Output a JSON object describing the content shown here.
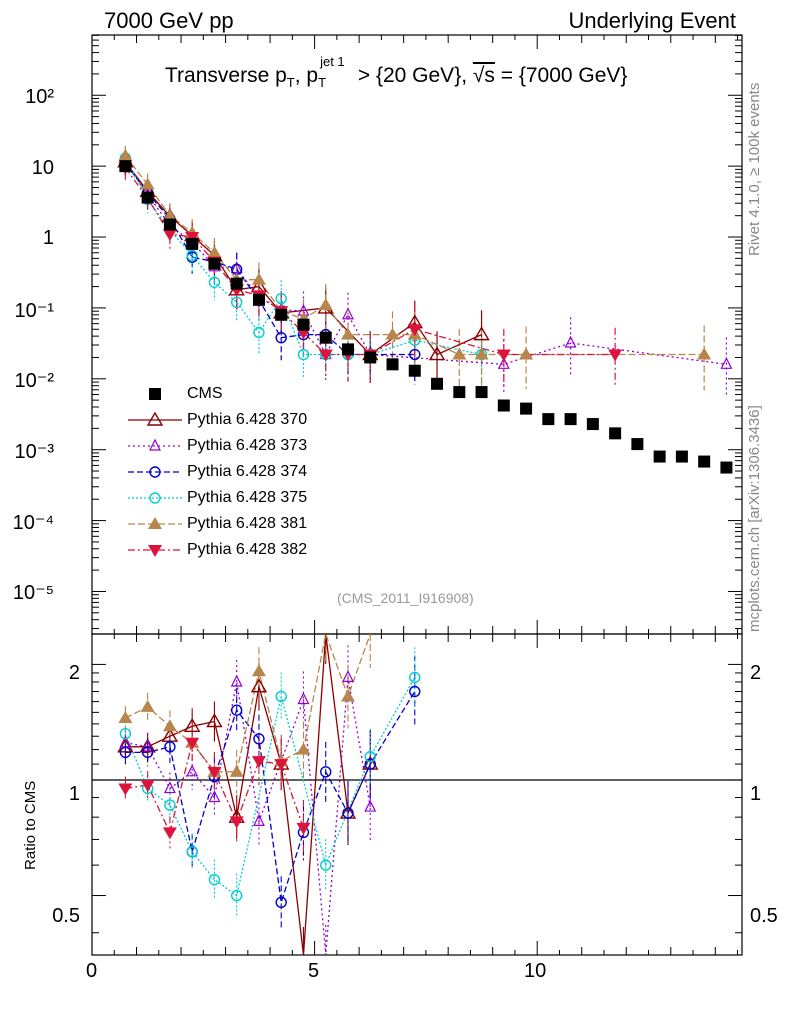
{
  "header": {
    "left": "7000 GeV pp",
    "right": "Underlying Event",
    "rivet": "Rivet 4.1.0, ≥ 100k events",
    "mcplots": "mcplots.cern.ch [arXiv:1306.3436]",
    "watermark": "(CMS_2011_I916908)"
  },
  "title": {
    "part1": "Transverse p",
    "sub1": "T",
    "part2": ", p",
    "sub2": "T",
    "sup2": "jet 1",
    "part3": " > {20 GeV}, ",
    "sqrt": "√s",
    "part4": " = {7000 GeV}"
  },
  "axes": {
    "ratio_ylabel": "Ratio to CMS",
    "x_ticks": [
      "0",
      "5",
      "10"
    ],
    "upper_y_ticks": [
      "10⁻⁵",
      "10⁻⁴",
      "10⁻³",
      "10⁻²",
      "10⁻¹",
      "1",
      "10",
      "10²"
    ],
    "ratio_y_ticks": [
      "0.5",
      "1",
      "2"
    ]
  },
  "chart_data": {
    "type": "scatter",
    "x_range": [
      0,
      14.6
    ],
    "upper_y_range_log10": [
      -5.6,
      2.85
    ],
    "ratio_y_range": [
      0.35,
      2.4
    ],
    "x": [
      0.75,
      1.25,
      1.75,
      2.25,
      2.75,
      3.25,
      3.75,
      4.25,
      4.75,
      5.25,
      5.75,
      6.25,
      6.75,
      7.25,
      7.75,
      8.25,
      8.75,
      9.25,
      9.75,
      10.25,
      10.75,
      11.25,
      11.75,
      12.25,
      12.75,
      13.25,
      13.75,
      14.25
    ],
    "cms": [
      10.0,
      3.6,
      1.5,
      0.8,
      0.42,
      0.22,
      0.13,
      0.08,
      0.058,
      0.038,
      0.026,
      0.02,
      0.016,
      0.013,
      0.0085,
      0.0065,
      0.0065,
      0.0042,
      0.0038,
      0.0027,
      0.0027,
      0.0023,
      0.0017,
      0.0012,
      0.0008,
      0.0008,
      0.00068,
      0.00056
    ],
    "series": [
      {
        "name": "Pythia 6.428 370",
        "color": "#8b0000",
        "dash": "",
        "marker": "triangle-open",
        "x": [
          0.75,
          1.25,
          1.75,
          2.25,
          2.75,
          3.25,
          3.75,
          4.25,
          5.25,
          6.25,
          7.25,
          7.75,
          8.75
        ],
        "values": [
          11.5,
          4.4,
          1.95,
          1.05,
          0.55,
          0.18,
          0.2,
          0.085,
          0.1,
          0.022,
          0.062,
          0.022,
          0.042
        ],
        "ratio_x": [
          0.75,
          1.25,
          1.75,
          2.25,
          2.75,
          3.25,
          3.75,
          4.25,
          4.75,
          5.25,
          5.75,
          6.25
        ],
        "ratio": [
          1.22,
          1.22,
          1.3,
          1.38,
          1.42,
          0.8,
          1.75,
          1.1,
          0.35,
          2.4,
          0.82,
          1.1
        ]
      },
      {
        "name": "Pythia 6.428 373",
        "color": "#9400d3",
        "dash": "2,3",
        "marker": "triangle-open-small",
        "x": [
          0.75,
          1.25,
          1.75,
          2.25,
          2.75,
          3.25,
          3.75,
          4.25,
          4.75,
          5.25,
          5.75,
          6.25,
          9.25,
          10.75,
          14.25
        ],
        "values": [
          11.0,
          4.0,
          1.45,
          0.85,
          0.38,
          0.36,
          0.14,
          0.095,
          0.09,
          0.022,
          0.08,
          0.022,
          0.016,
          0.032,
          0.016
        ],
        "ratio_x": [
          0.75,
          1.25,
          1.75,
          2.25,
          2.75,
          3.25,
          3.75,
          4.25,
          4.75,
          5.25,
          5.75,
          6.25
        ],
        "ratio": [
          1.25,
          1.22,
          0.95,
          1.05,
          0.9,
          1.8,
          0.78,
          1.12,
          1.62,
          0.35,
          1.85,
          0.85
        ]
      },
      {
        "name": "Pythia 6.428 374",
        "color": "#0000cd",
        "dash": "6,3",
        "marker": "circle-open",
        "x": [
          0.75,
          1.25,
          1.75,
          2.25,
          2.75,
          3.25,
          3.75,
          4.25,
          4.75,
          5.25,
          5.75,
          6.25,
          7.25
        ],
        "values": [
          11.0,
          4.2,
          1.8,
          0.52,
          0.45,
          0.35,
          0.13,
          0.038,
          0.042,
          0.042,
          0.022,
          0.022,
          0.022
        ],
        "ratio_x": [
          0.75,
          1.25,
          1.75,
          2.25,
          2.75,
          3.25,
          3.75,
          4.25,
          4.75,
          5.25,
          5.75,
          6.25,
          7.25
        ],
        "ratio": [
          1.18,
          1.18,
          1.22,
          0.65,
          1.02,
          1.52,
          1.28,
          0.48,
          0.73,
          1.05,
          0.82,
          1.1,
          1.7
        ]
      },
      {
        "name": "Pythia 6.428 375",
        "color": "#00ced1",
        "dash": "2,2",
        "marker": "circle-open",
        "x": [
          0.75,
          1.25,
          1.75,
          2.25,
          2.75,
          3.25,
          3.75,
          4.25,
          4.75,
          5.25,
          5.75,
          6.25,
          7.25,
          8.75
        ],
        "values": [
          13.0,
          3.4,
          1.25,
          0.55,
          0.23,
          0.12,
          0.045,
          0.135,
          0.022,
          0.022,
          0.022,
          0.022,
          0.035,
          0.022
        ],
        "ratio_x": [
          0.75,
          1.25,
          1.75,
          2.25,
          2.75,
          3.25,
          4.25,
          5.25,
          6.25,
          7.25
        ],
        "ratio": [
          1.32,
          0.95,
          0.86,
          0.65,
          0.55,
          0.5,
          1.65,
          0.6,
          1.15,
          1.85
        ]
      },
      {
        "name": "Pythia 6.428 381",
        "color": "#b8864b",
        "dash": "7,3",
        "marker": "triangle-filled",
        "x": [
          0.75,
          1.25,
          1.75,
          2.25,
          2.75,
          3.25,
          3.75,
          4.25,
          4.75,
          5.25,
          5.75,
          6.75,
          7.25,
          8.25,
          8.75,
          9.75,
          13.75
        ],
        "values": [
          14.0,
          5.5,
          2.0,
          1.15,
          0.6,
          0.25,
          0.25,
          0.09,
          0.07,
          0.11,
          0.042,
          0.042,
          0.042,
          0.022,
          0.022,
          0.022,
          0.022
        ],
        "ratio_x": [
          0.75,
          1.25,
          1.75,
          2.25,
          2.75,
          3.25,
          3.75,
          4.25,
          4.75,
          5.25,
          5.75,
          6.25
        ],
        "ratio": [
          1.45,
          1.55,
          1.38,
          1.25,
          1.05,
          1.05,
          1.92,
          1.12,
          1.2,
          2.4,
          1.65,
          2.4
        ]
      },
      {
        "name": "Pythia 6.428 382",
        "color": "#dc143c",
        "dash": "7,3,2,3",
        "marker": "triangle-down-filled",
        "x": [
          0.75,
          1.25,
          1.75,
          2.25,
          2.75,
          3.25,
          3.75,
          4.25,
          4.75,
          5.25,
          5.75,
          6.25,
          7.25,
          9.25,
          11.75
        ],
        "values": [
          9.5,
          3.5,
          1.1,
          1.0,
          0.45,
          0.18,
          0.15,
          0.09,
          0.045,
          0.022,
          0.022,
          0.022,
          0.05,
          0.022,
          0.022
        ],
        "ratio_x": [
          0.75,
          1.25,
          1.75,
          2.25,
          2.75,
          3.25,
          3.75,
          4.25,
          4.75
        ],
        "ratio": [
          0.95,
          0.97,
          0.73,
          1.25,
          1.05,
          0.78,
          1.12,
          1.1,
          0.75
        ]
      }
    ]
  }
}
